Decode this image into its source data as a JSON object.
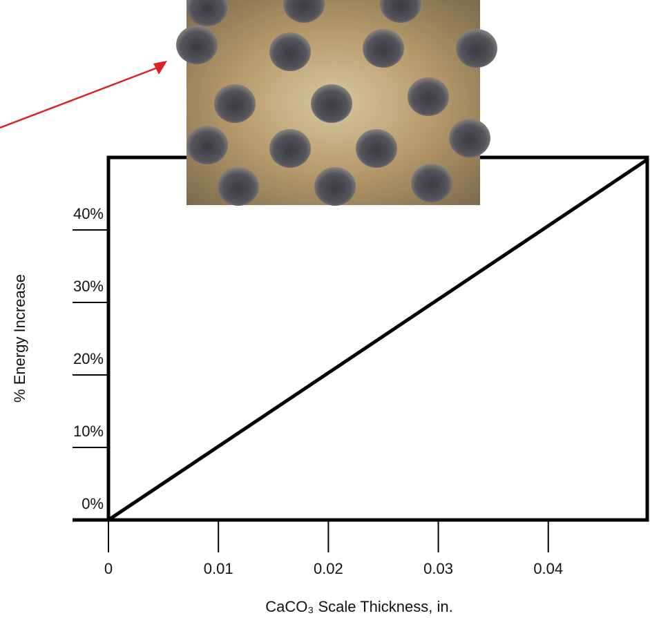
{
  "chart_data": {
    "type": "line",
    "x_label": "CaCO₃ Scale Thickness, in.",
    "y_label": "% Energy Increase",
    "x": [
      0,
      0.049
    ],
    "series": [
      {
        "color": "#000000",
        "values": [
          0,
          49.7
        ]
      }
    ],
    "xlim": [
      0,
      0.049
    ],
    "ylim": [
      0,
      50
    ],
    "xticks": [
      0,
      0.01,
      0.02,
      0.03,
      0.04
    ],
    "yticks": [
      {
        "value": 0,
        "label": "0%"
      },
      {
        "value": 10,
        "label": "10%"
      },
      {
        "value": 20,
        "label": "20%"
      },
      {
        "value": 30,
        "label": "30%"
      },
      {
        "value": 40,
        "label": "40%"
      }
    ],
    "grid": false
  }
}
